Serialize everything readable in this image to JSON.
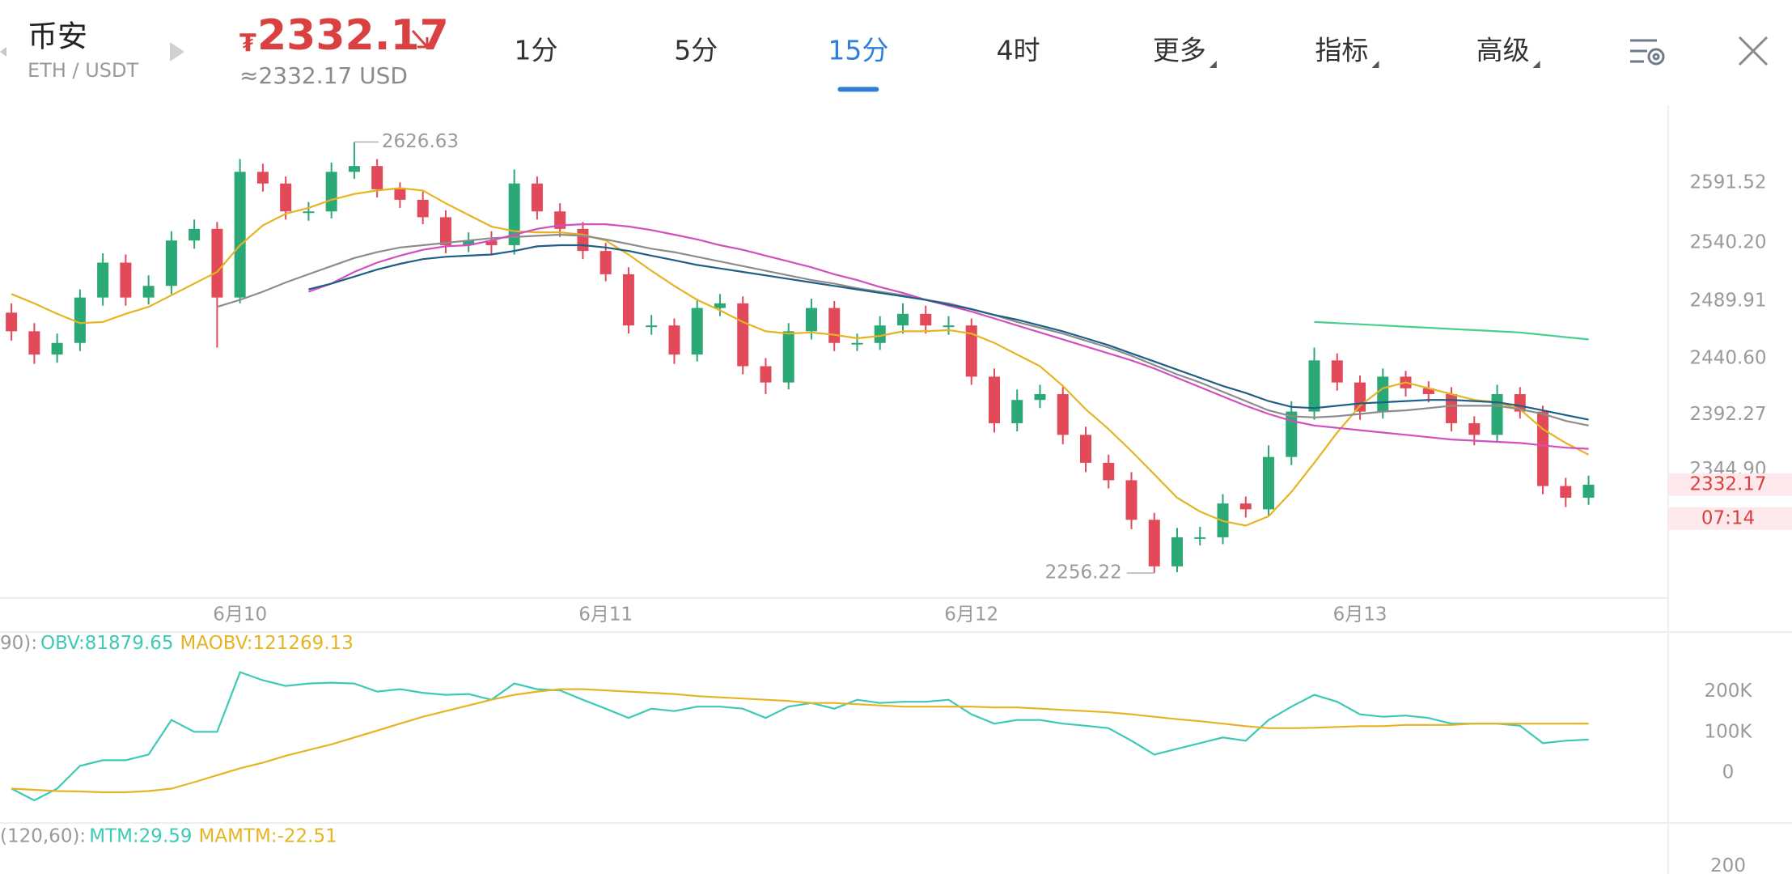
{
  "header": {
    "exchange": "币安",
    "pair": "ETH / USDT",
    "currency_symbol": "₮",
    "usd_price": "≈2332.17 USD",
    "tabs": [
      {
        "label": "1分"
      },
      {
        "label": "5分"
      },
      {
        "label": "15分"
      },
      {
        "label": "4时"
      },
      {
        "label": "更多",
        "dropdown": true
      },
      {
        "label": "指标",
        "dropdown": true
      },
      {
        "label": "高级",
        "dropdown": true
      }
    ],
    "active_tab": 2
  },
  "chart_data": [
    {
      "type": "candlestick",
      "up_color": "#2aa876",
      "down_color": "#e24a5a",
      "ylim": [
        2234.9,
        2658.3
      ],
      "yticks": [
        2591.52,
        {
          "value": 2540.2,
          "label": "2540.20"
        },
        2489.91,
        {
          "value": 2440.6,
          "label": "2440.60"
        },
        2392.27,
        {
          "value": 2344.9,
          "label": "2344.90"
        }
      ],
      "countdown": "07:14",
      "categories": [
        null,
        null,
        null,
        null,
        null,
        null,
        null,
        null,
        null,
        null,
        "6月10",
        null,
        null,
        null,
        null,
        null,
        null,
        null,
        null,
        null,
        null,
        null,
        null,
        null,
        null,
        null,
        "6月11",
        null,
        null,
        null,
        null,
        null,
        null,
        null,
        null,
        null,
        null,
        null,
        null,
        null,
        null,
        null,
        "6月12",
        null,
        null,
        null,
        null,
        null,
        null,
        null,
        null,
        null,
        null,
        null,
        null,
        null,
        null,
        null,
        null,
        "6月13",
        null,
        null,
        null,
        null,
        null,
        null,
        null,
        null,
        null,
        null
      ],
      "open": [
        2480,
        2464,
        2444,
        2454,
        2493,
        2523,
        2493,
        2503,
        2542,
        2552,
        2493,
        2601,
        2591,
        2567,
        2567,
        2601,
        2606,
        2586,
        2577,
        2562,
        2538,
        2542,
        2538,
        2591,
        2567,
        2552,
        2533,
        2513,
        2469,
        2469,
        2444,
        2484,
        2488,
        2434,
        2420,
        2464,
        2484,
        2454,
        2454,
        2469,
        2479,
        2469,
        2469,
        2425,
        2385,
        2405,
        2410,
        2375,
        2351,
        2336,
        2302,
        2262,
        2287,
        2287,
        2316,
        2311,
        2356,
        2395,
        2439,
        2420,
        2395,
        2425,
        2415,
        2410,
        2385,
        2375,
        2410,
        2395,
        2331,
        2321
      ],
      "high": [
        2488,
        2471,
        2462,
        2500,
        2531,
        2530,
        2512,
        2550,
        2560,
        2558,
        2612,
        2608,
        2597,
        2575,
        2609,
        2626.63,
        2612,
        2592,
        2584,
        2568,
        2549,
        2550,
        2603,
        2597,
        2574,
        2558,
        2540,
        2519,
        2478,
        2475,
        2492,
        2496,
        2494,
        2441,
        2471,
        2492,
        2490,
        2462,
        2477,
        2488,
        2486,
        2477,
        2475,
        2432,
        2414,
        2418,
        2416,
        2382,
        2358,
        2343,
        2308,
        2295,
        2296,
        2324,
        2322,
        2366,
        2404,
        2450,
        2445,
        2426,
        2432,
        2430,
        2421,
        2416,
        2391,
        2418,
        2416,
        2400,
        2338,
        2340
      ],
      "low": [
        2456,
        2436,
        2437,
        2447,
        2486,
        2486,
        2487,
        2496,
        2535,
        2450,
        2488,
        2584,
        2560,
        2559,
        2561,
        2595,
        2579,
        2570,
        2556,
        2531,
        2532,
        2530,
        2530,
        2560,
        2545,
        2526,
        2507,
        2462,
        2461,
        2436,
        2438,
        2477,
        2427,
        2410,
        2414,
        2457,
        2447,
        2447,
        2448,
        2462,
        2462,
        2461,
        2418,
        2377,
        2378,
        2398,
        2367,
        2343,
        2329,
        2294,
        2256.22,
        2257,
        2280,
        2281,
        2304,
        2305,
        2349,
        2388,
        2413,
        2388,
        2389,
        2408,
        2403,
        2378,
        2366,
        2369,
        2389,
        2324,
        2313,
        2315
      ],
      "close": [
        2464,
        2444,
        2454,
        2493,
        2523,
        2493,
        2503,
        2542,
        2552,
        2493,
        2601,
        2591,
        2567,
        2567,
        2601,
        2606,
        2586,
        2577,
        2562,
        2538,
        2542,
        2538,
        2591,
        2567,
        2552,
        2533,
        2513,
        2469,
        2469,
        2444,
        2484,
        2488,
        2434,
        2420,
        2464,
        2484,
        2454,
        2454,
        2469,
        2479,
        2469,
        2469,
        2425,
        2385,
        2405,
        2410,
        2375,
        2351,
        2336,
        2302,
        2262,
        2287,
        2287,
        2316,
        2311,
        2356,
        2395,
        2439,
        2420,
        2395,
        2425,
        2415,
        2410,
        2385,
        2375,
        2410,
        2395,
        2331,
        2321,
        2332.17
      ],
      "series": [
        {
          "color": "#e6b422",
          "values": [
            2496,
            2488,
            2479,
            2471,
            2472,
            2479,
            2485,
            2495,
            2505,
            2515,
            2538,
            2555,
            2565,
            2570,
            2577,
            2582,
            2585,
            2587,
            2585,
            2574,
            2564,
            2554,
            2550,
            2549,
            2549,
            2547,
            2542,
            2530,
            2516,
            2503,
            2491,
            2482,
            2472,
            2464,
            2462,
            2463,
            2461,
            2458,
            2460,
            2464,
            2464,
            2465,
            2462,
            2454,
            2444,
            2434,
            2417,
            2397,
            2380,
            2361,
            2341,
            2321,
            2309,
            2301,
            2297,
            2305,
            2326,
            2351,
            2377,
            2400,
            2415,
            2420,
            2415,
            2410,
            2405,
            2403,
            2397,
            2380,
            2368,
            2358
          ]
        },
        {
          "color": "#8c8c8c",
          "values": [
            null,
            null,
            null,
            null,
            null,
            null,
            null,
            null,
            null,
            2485,
            2491,
            2498,
            2506,
            2513,
            2520,
            2527,
            2532,
            2536,
            2538,
            2540,
            2542,
            2544,
            2545,
            2546,
            2547,
            2546,
            2543,
            2539,
            2535,
            2532,
            2528,
            2524,
            2520,
            2516,
            2512,
            2508,
            2505,
            2501,
            2498,
            2495,
            2491,
            2488,
            2483,
            2478,
            2472,
            2467,
            2462,
            2456,
            2450,
            2443,
            2435,
            2427,
            2420,
            2412,
            2404,
            2396,
            2391,
            2390,
            2391,
            2393,
            2395,
            2396,
            2398,
            2400,
            2400,
            2400,
            2397,
            2393,
            2387,
            2383
          ]
        },
        {
          "color": "#d24fbf",
          "values": [
            null,
            null,
            null,
            null,
            null,
            null,
            null,
            null,
            null,
            null,
            null,
            null,
            null,
            2498,
            2505,
            2515,
            2523,
            2529,
            2534,
            2537,
            2538,
            2542,
            2547,
            2552,
            2555,
            2556,
            2556,
            2554,
            2551,
            2547,
            2543,
            2538,
            2534,
            2529,
            2524,
            2519,
            2513,
            2508,
            2502,
            2497,
            2491,
            2486,
            2481,
            2475,
            2469,
            2463,
            2457,
            2451,
            2445,
            2439,
            2432,
            2424,
            2416,
            2408,
            2400,
            2393,
            2387,
            2383,
            2381,
            2379,
            2377,
            2375,
            2373,
            2371,
            2370,
            2369,
            2368,
            2366,
            2364,
            2363
          ]
        },
        {
          "color": "#1f5f86",
          "values": [
            null,
            null,
            null,
            null,
            null,
            null,
            null,
            null,
            null,
            null,
            null,
            null,
            null,
            2500,
            2505,
            2511,
            2517,
            2522,
            2526,
            2528,
            2529,
            2530,
            2533,
            2537,
            2538,
            2538,
            2536,
            2533,
            2529,
            2525,
            2521,
            2518,
            2515,
            2512,
            2509,
            2506,
            2503,
            2500,
            2497,
            2494,
            2491,
            2487,
            2483,
            2478,
            2474,
            2469,
            2464,
            2458,
            2452,
            2445,
            2438,
            2431,
            2424,
            2417,
            2411,
            2404,
            2399,
            2398,
            2400,
            2402,
            2403,
            2404,
            2405,
            2405,
            2404,
            2403,
            2400,
            2396,
            2392,
            2388
          ]
        },
        {
          "color": "#45d08f",
          "values": [
            null,
            null,
            null,
            null,
            null,
            null,
            null,
            null,
            null,
            null,
            null,
            null,
            null,
            null,
            null,
            null,
            null,
            null,
            null,
            null,
            null,
            null,
            null,
            null,
            null,
            null,
            null,
            null,
            null,
            null,
            null,
            null,
            null,
            null,
            null,
            null,
            null,
            null,
            null,
            null,
            null,
            null,
            null,
            null,
            null,
            null,
            null,
            null,
            null,
            null,
            null,
            null,
            null,
            null,
            null,
            null,
            null,
            2472,
            2471,
            2470,
            2469,
            2468,
            2467,
            2466,
            2465,
            2464,
            2463,
            2461,
            2459,
            2457
          ]
        }
      ]
    },
    {
      "type": "line",
      "legend_prefix": "90): ",
      "legend": [
        {
          "text": "OBV:81879.65",
          "color": "#3cc9b5"
        },
        {
          "text": "MAOBV:121269.13",
          "color": "#e6b422"
        }
      ],
      "ylim": [
        -124000,
        346500
      ],
      "yticks": [
        {
          "value": 200000,
          "label": "200K"
        },
        {
          "value": 100000,
          "label": "100K"
        },
        0
      ],
      "series": [
        {
          "color": "#3cc9b5",
          "values": [
            -39000,
            -68000,
            -39000,
            17000,
            31000,
            31000,
            45000,
            130000,
            101000,
            101000,
            248000,
            228000,
            214000,
            220000,
            222000,
            220000,
            200000,
            206000,
            197000,
            192000,
            194000,
            180000,
            220000,
            206000,
            203000,
            180000,
            158000,
            135000,
            158000,
            152000,
            163000,
            163000,
            158000,
            135000,
            163000,
            172000,
            158000,
            180000,
            172000,
            175000,
            175000,
            180000,
            144000,
            121000,
            130000,
            130000,
            121000,
            116000,
            110000,
            79000,
            45000,
            59000,
            73000,
            87000,
            79000,
            130000,
            163000,
            192000,
            175000,
            144000,
            138000,
            141000,
            135000,
            121000,
            121000,
            121000,
            116000,
            73000,
            79000,
            81879.65
          ]
        },
        {
          "color": "#e6b422",
          "values": [
            -39000,
            -42000,
            -45000,
            -46000,
            -48000,
            -48000,
            -45000,
            -39000,
            -23000,
            -6000,
            11000,
            25000,
            42000,
            56000,
            70000,
            87000,
            104000,
            121000,
            138000,
            152000,
            166000,
            180000,
            192000,
            200000,
            206000,
            206000,
            203000,
            200000,
            197000,
            194000,
            189000,
            186000,
            183000,
            180000,
            177000,
            172000,
            172000,
            169000,
            166000,
            163000,
            163000,
            163000,
            163000,
            161000,
            161000,
            158000,
            155000,
            152000,
            149000,
            144000,
            138000,
            132000,
            127000,
            121000,
            115000,
            110000,
            110000,
            111000,
            113000,
            115000,
            115000,
            118000,
            118000,
            118000,
            121000,
            121000,
            121000,
            121000,
            121000,
            121269.13
          ]
        }
      ]
    },
    {
      "type": "line",
      "legend_prefix": "(120,60): ",
      "legend": [
        {
          "text": "MTM:29.59",
          "color": "#3cc9b5"
        },
        {
          "text": "MAMTM:-22.51",
          "color": "#e6b422"
        }
      ],
      "ylim": [
        -140,
        300
      ],
      "yticks": [
        200
      ],
      "series": []
    }
  ]
}
